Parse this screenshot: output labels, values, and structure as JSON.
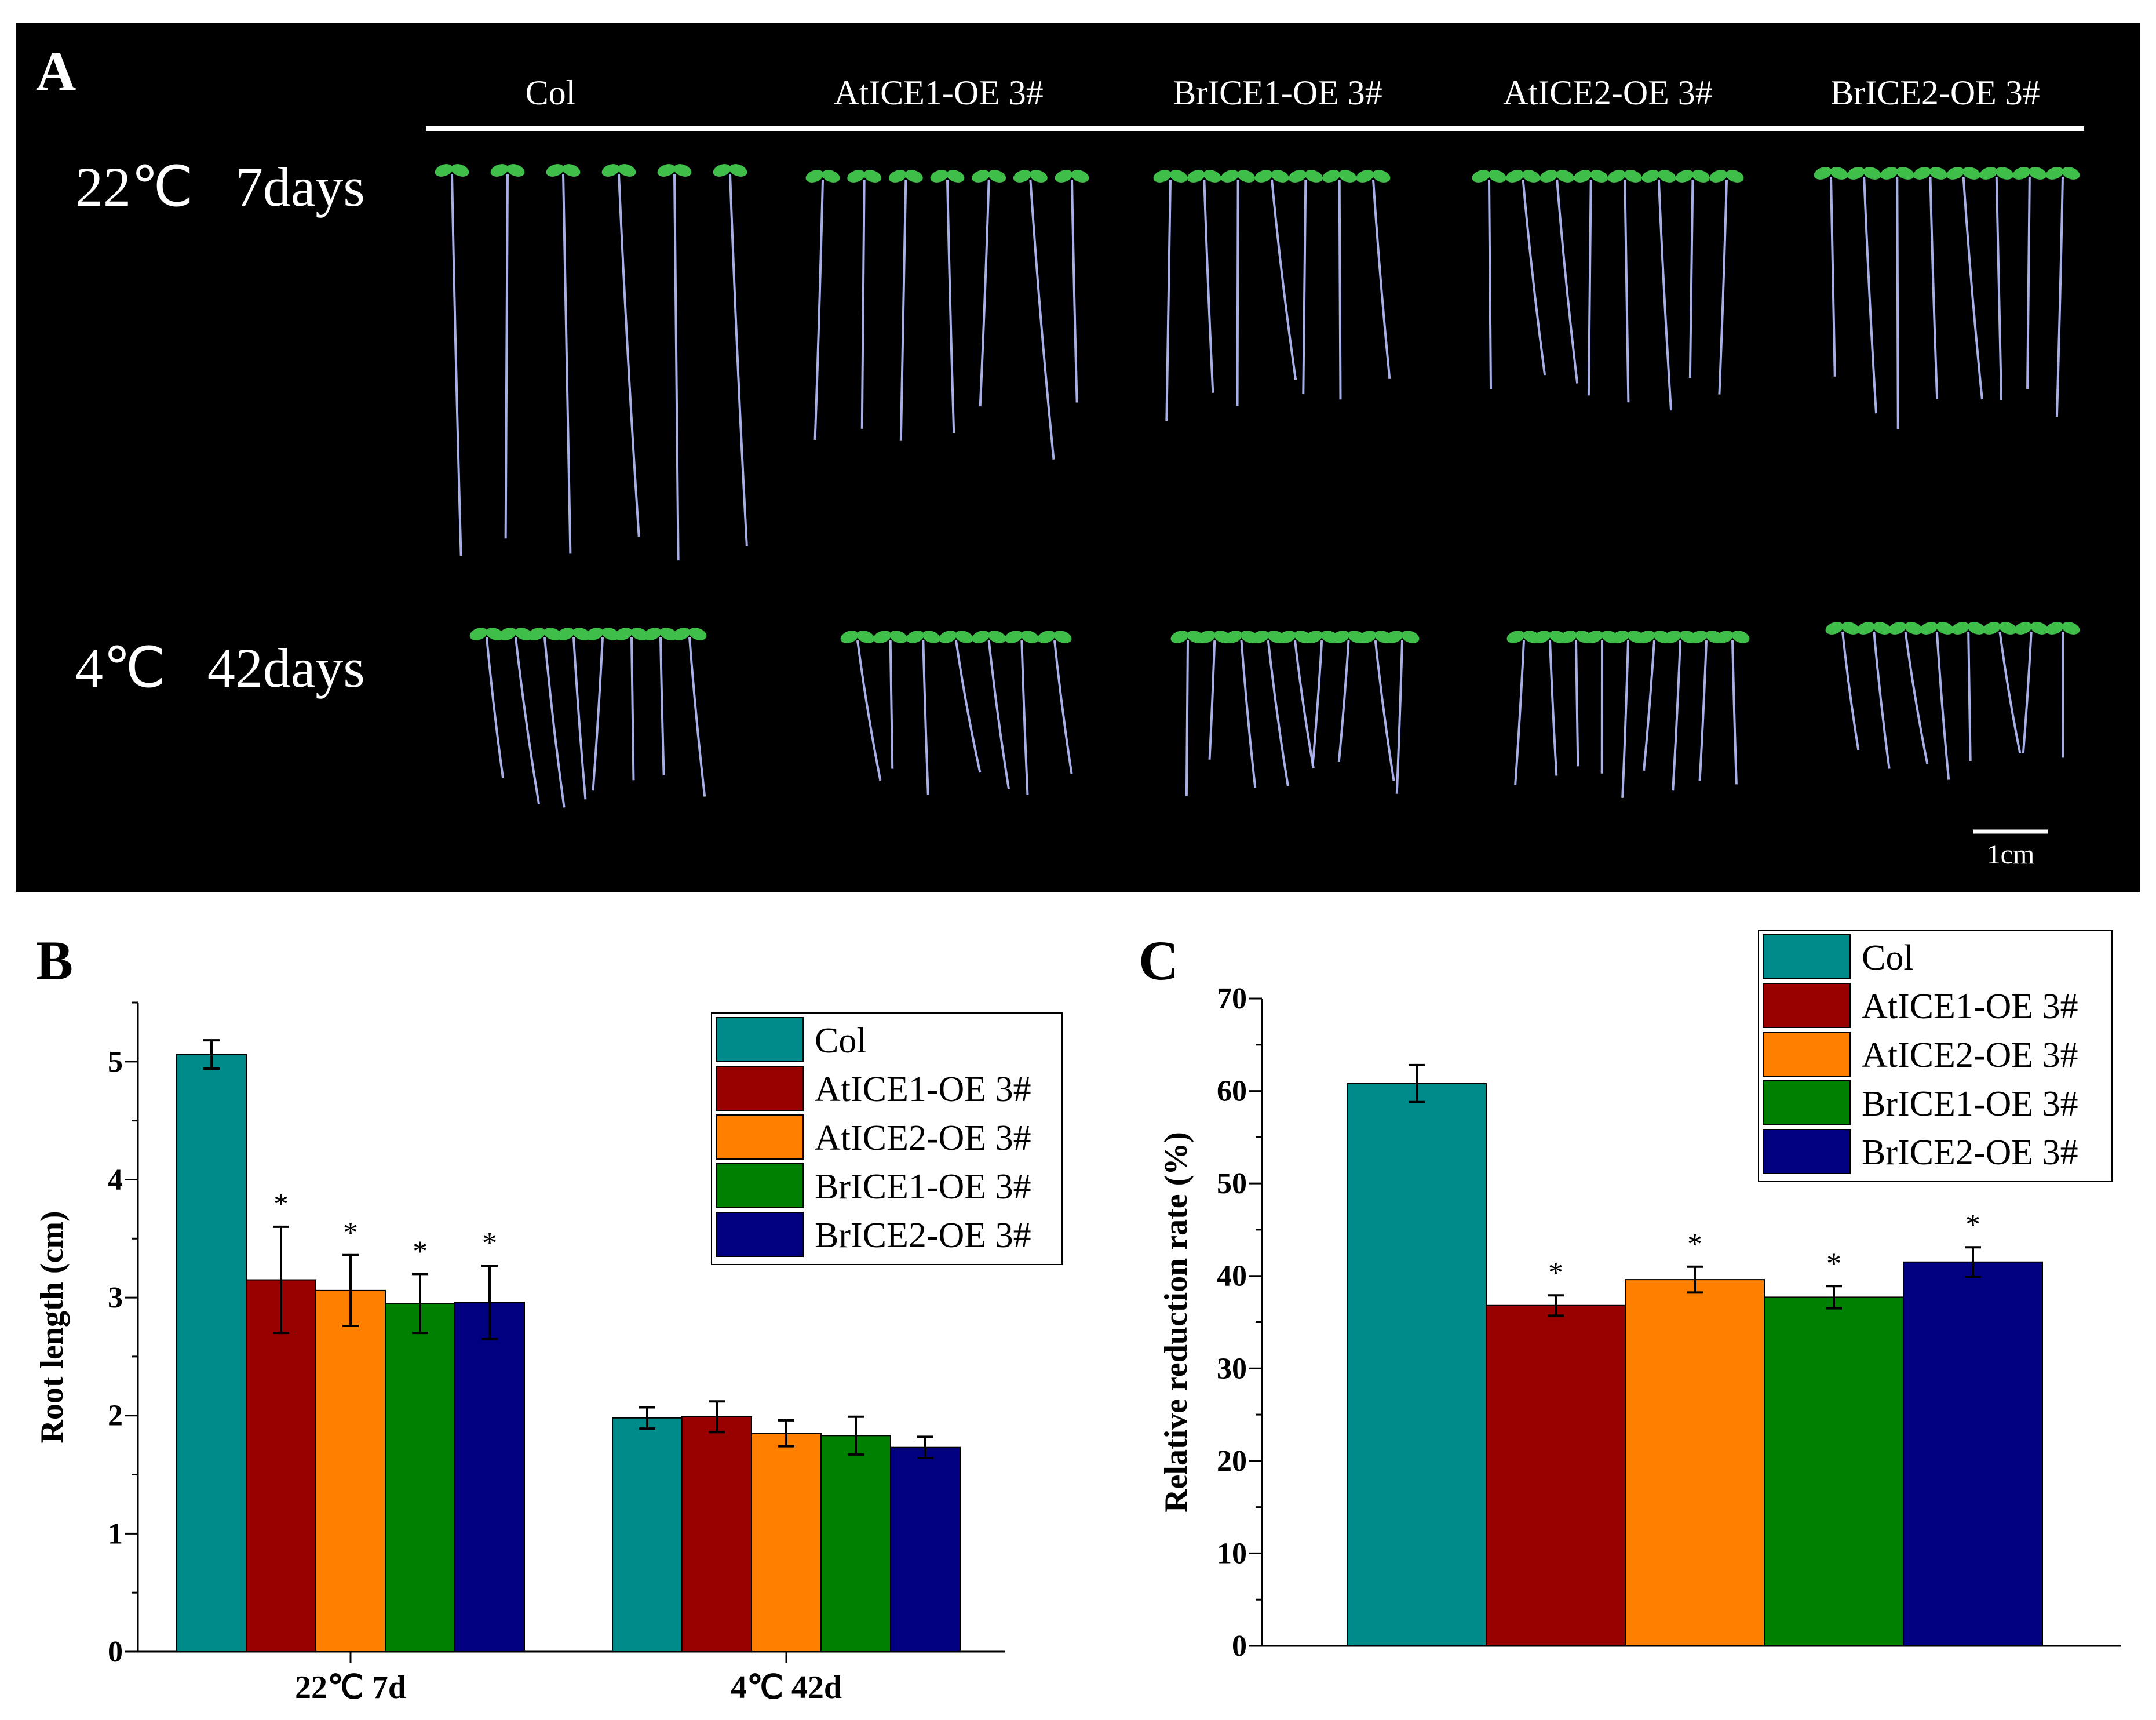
{
  "panel_a": {
    "label": "A",
    "genotypes": [
      "Col",
      "AtICE1-OE 3#",
      "BrICE1-OE 3#",
      "AtICE2-OE 3#",
      "BrICE2-OE 3#"
    ],
    "conditions": [
      "22℃   7days",
      "4℃   42days"
    ],
    "scale_bar": "1cm",
    "background_color": "#000000",
    "seedling_leaf_color": "#3fbf4a",
    "seedling_root_color": "#b9c2ff"
  },
  "chart_data": [
    {
      "panel": "B",
      "type": "bar",
      "categories": [
        "22℃ 7d",
        "4℃ 42d"
      ],
      "series": [
        {
          "name": "Col",
          "color": "#008b8b",
          "values": [
            5.06,
            1.98
          ],
          "errors": [
            0.12,
            0.09
          ],
          "significance": [
            "",
            ""
          ]
        },
        {
          "name": "AtICE1-OE 3#",
          "color": "#990000",
          "values": [
            3.15,
            1.99
          ],
          "errors": [
            0.45,
            0.13
          ],
          "significance": [
            "*",
            ""
          ]
        },
        {
          "name": "AtICE2-OE 3#",
          "color": "#ff8000",
          "values": [
            3.06,
            1.85
          ],
          "errors": [
            0.3,
            0.11
          ],
          "significance": [
            "*",
            ""
          ]
        },
        {
          "name": "BrICE1-OE 3#",
          "color": "#008000",
          "values": [
            2.95,
            1.83
          ],
          "errors": [
            0.25,
            0.16
          ],
          "significance": [
            "*",
            ""
          ]
        },
        {
          "name": "BrICE2-OE 3#",
          "color": "#000080",
          "values": [
            2.96,
            1.73
          ],
          "errors": [
            0.31,
            0.09
          ],
          "significance": [
            "*",
            ""
          ]
        }
      ],
      "xlabel": "",
      "ylabel": "Root length (cm)",
      "ylim": [
        0,
        5.5
      ],
      "yticks": [
        0,
        1,
        2,
        3,
        4,
        5
      ],
      "legend_position": "top-right",
      "grid": false
    },
    {
      "panel": "C",
      "type": "bar",
      "categories": [
        "Col",
        "AtICE1-OE 3#",
        "AtICE2-OE 3#",
        "BrICE1-OE 3#",
        "BrICE2-OE 3#"
      ],
      "values": [
        60.8,
        36.8,
        39.6,
        37.7,
        41.5
      ],
      "errors": [
        2.0,
        1.1,
        1.4,
        1.2,
        1.6
      ],
      "significance": [
        "",
        "*",
        "*",
        "*",
        "*"
      ],
      "colors": [
        "#008b8b",
        "#990000",
        "#ff8000",
        "#008000",
        "#000080"
      ],
      "xlabel": "",
      "ylabel": "Relative reduction rate (%)",
      "ylim": [
        0,
        70
      ],
      "yticks": [
        0,
        10,
        20,
        30,
        40,
        50,
        60,
        70
      ],
      "legend_position": "top-right",
      "grid": false
    }
  ],
  "panel_b_label": "B",
  "panel_c_label": "C"
}
